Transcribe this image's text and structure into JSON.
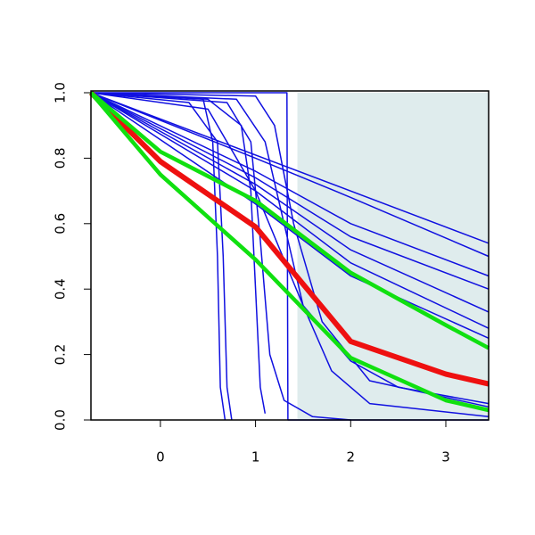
{
  "chart_data": {
    "type": "line",
    "xlim": [
      -0.73,
      3.45
    ],
    "ylim": [
      0,
      1
    ],
    "xticks": [
      0,
      1,
      2,
      3
    ],
    "yticks": [
      {
        "value": 0,
        "label": "0.0"
      },
      {
        "value": 0.2,
        "label": "0.2"
      },
      {
        "value": 0.4,
        "label": "0.4"
      },
      {
        "value": 0.6,
        "label": "0.6"
      },
      {
        "value": 0.8,
        "label": "0.8"
      },
      {
        "value": 1,
        "label": "1.0"
      }
    ],
    "shade": {
      "xmin": 1.44,
      "xmax": 3.45,
      "color": "#dfeced"
    },
    "series": [
      {
        "color": "#1010e0",
        "width": 1.5,
        "x": [
          -0.73,
          3.45
        ],
        "values": [
          1,
          0.54
        ]
      },
      {
        "color": "#1010e0",
        "width": 1.5,
        "x": [
          -0.73,
          1,
          2,
          3.45
        ],
        "values": [
          1,
          0.8,
          0.68,
          0.5
        ]
      },
      {
        "color": "#1010e0",
        "width": 1.5,
        "x": [
          -0.73,
          1,
          2,
          3.45
        ],
        "values": [
          1,
          0.76,
          0.6,
          0.44
        ]
      },
      {
        "color": "#1010e0",
        "width": 1.5,
        "x": [
          -0.73,
          1,
          2,
          3.45
        ],
        "values": [
          1,
          0.74,
          0.56,
          0.4
        ]
      },
      {
        "color": "#1010e0",
        "width": 1.5,
        "x": [
          -0.73,
          1,
          2,
          3.45
        ],
        "values": [
          1,
          0.72,
          0.52,
          0.33
        ]
      },
      {
        "color": "#1010e0",
        "width": 1.5,
        "x": [
          -0.73,
          1,
          2,
          3.45
        ],
        "values": [
          1,
          0.7,
          0.48,
          0.28
        ]
      },
      {
        "color": "#1010e0",
        "width": 1.5,
        "x": [
          -0.73,
          1,
          2,
          3.45
        ],
        "values": [
          1,
          0.66,
          0.44,
          0.25
        ]
      },
      {
        "color": "#1010e0",
        "width": 1.5,
        "x": [
          -0.73,
          0.45,
          0.55,
          0.6,
          0.63,
          0.68
        ],
        "values": [
          1,
          0.98,
          0.85,
          0.5,
          0.1,
          0
        ]
      },
      {
        "color": "#1010e0",
        "width": 1.5,
        "x": [
          -0.73,
          0.3,
          0.6,
          0.66,
          0.7,
          0.75
        ],
        "values": [
          1,
          0.97,
          0.85,
          0.5,
          0.1,
          0
        ]
      },
      {
        "color": "#1010e0",
        "width": 1.5,
        "x": [
          -0.73,
          0.5,
          0.85,
          0.95,
          1.0,
          1.05,
          1.1
        ],
        "values": [
          1,
          0.98,
          0.9,
          0.7,
          0.4,
          0.1,
          0.02
        ]
      },
      {
        "color": "#1010e0",
        "width": 1.5,
        "x": [
          -0.73,
          0.7,
          0.95,
          1.05,
          1.15,
          1.3,
          1.6,
          2
        ],
        "values": [
          1,
          0.97,
          0.85,
          0.55,
          0.2,
          0.06,
          0.01,
          0
        ]
      },
      {
        "color": "#1010e0",
        "width": 1.5,
        "x": [
          -0.73,
          1.33,
          1.34,
          3.45
        ],
        "values": [
          1,
          1,
          0,
          0
        ]
      },
      {
        "color": "#1010e0",
        "width": 1.5,
        "x": [
          -0.73,
          0.8,
          1.1,
          1.3,
          1.5,
          1.8,
          2.2,
          3.45
        ],
        "values": [
          1,
          0.98,
          0.85,
          0.6,
          0.35,
          0.15,
          0.05,
          0.01
        ]
      },
      {
        "color": "#1010e0",
        "width": 1.5,
        "x": [
          -0.73,
          0.5,
          1,
          1.5,
          2,
          2.5,
          3.45
        ],
        "values": [
          1,
          0.95,
          0.7,
          0.35,
          0.18,
          0.1,
          0.05
        ]
      },
      {
        "color": "#1010e0",
        "width": 1.5,
        "x": [
          -0.73,
          1,
          1.2,
          1.4,
          1.7,
          2.2,
          3.45
        ],
        "values": [
          1,
          0.99,
          0.9,
          0.6,
          0.3,
          0.12,
          0.04
        ]
      },
      {
        "color": "#ee1010",
        "width": 6,
        "x": [
          -0.73,
          0,
          1,
          2,
          3,
          3.45
        ],
        "values": [
          1,
          0.79,
          0.59,
          0.24,
          0.14,
          0.11
        ]
      },
      {
        "color": "#10e010",
        "width": 4.5,
        "x": [
          -0.73,
          0,
          1,
          2,
          3,
          3.45
        ],
        "values": [
          1,
          0.82,
          0.67,
          0.45,
          0.29,
          0.22
        ]
      },
      {
        "color": "#10e010",
        "width": 4.5,
        "x": [
          -0.73,
          0,
          1,
          2,
          3,
          3.45
        ],
        "values": [
          1,
          0.75,
          0.49,
          0.19,
          0.06,
          0.03
        ]
      }
    ]
  }
}
